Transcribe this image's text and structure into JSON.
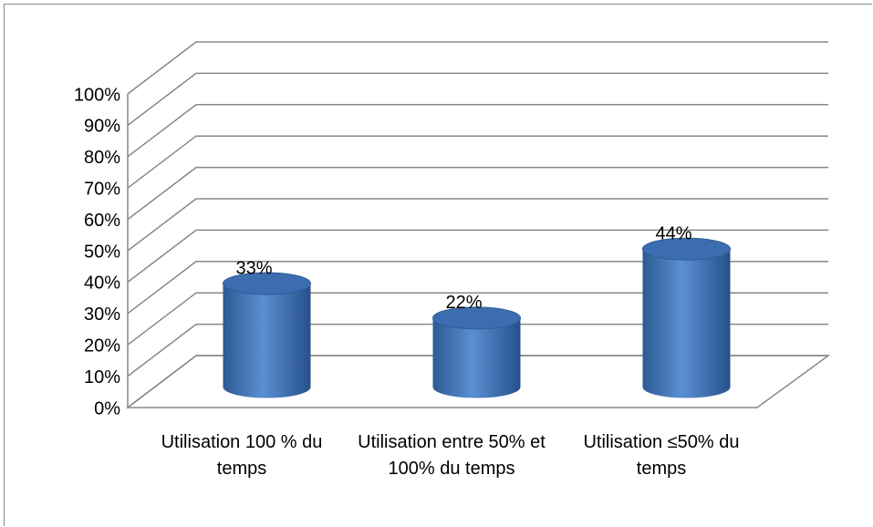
{
  "chart_data": {
    "type": "bar",
    "categories": [
      "Utilisation 100 % du temps",
      "Utilisation entre 50% et 100% du temps",
      "Utilisation ≤50% du temps"
    ],
    "values": [
      33,
      22,
      44
    ],
    "value_labels": [
      "33%",
      "22%",
      "44%"
    ],
    "color": "#4f81bd",
    "ylim": [
      0,
      100
    ],
    "yticks": [
      {
        "value": 0,
        "label": "0%"
      },
      {
        "value": 10,
        "label": "10%"
      },
      {
        "value": 20,
        "label": "20%"
      },
      {
        "value": 30,
        "label": "30%"
      },
      {
        "value": 40,
        "label": "40%"
      },
      {
        "value": 50,
        "label": "50%"
      },
      {
        "value": 60,
        "label": "60%"
      },
      {
        "value": 70,
        "label": "70%"
      },
      {
        "value": 80,
        "label": "80%"
      },
      {
        "value": 90,
        "label": "90%"
      },
      {
        "value": 100,
        "label": "100%"
      }
    ],
    "grid": true
  }
}
